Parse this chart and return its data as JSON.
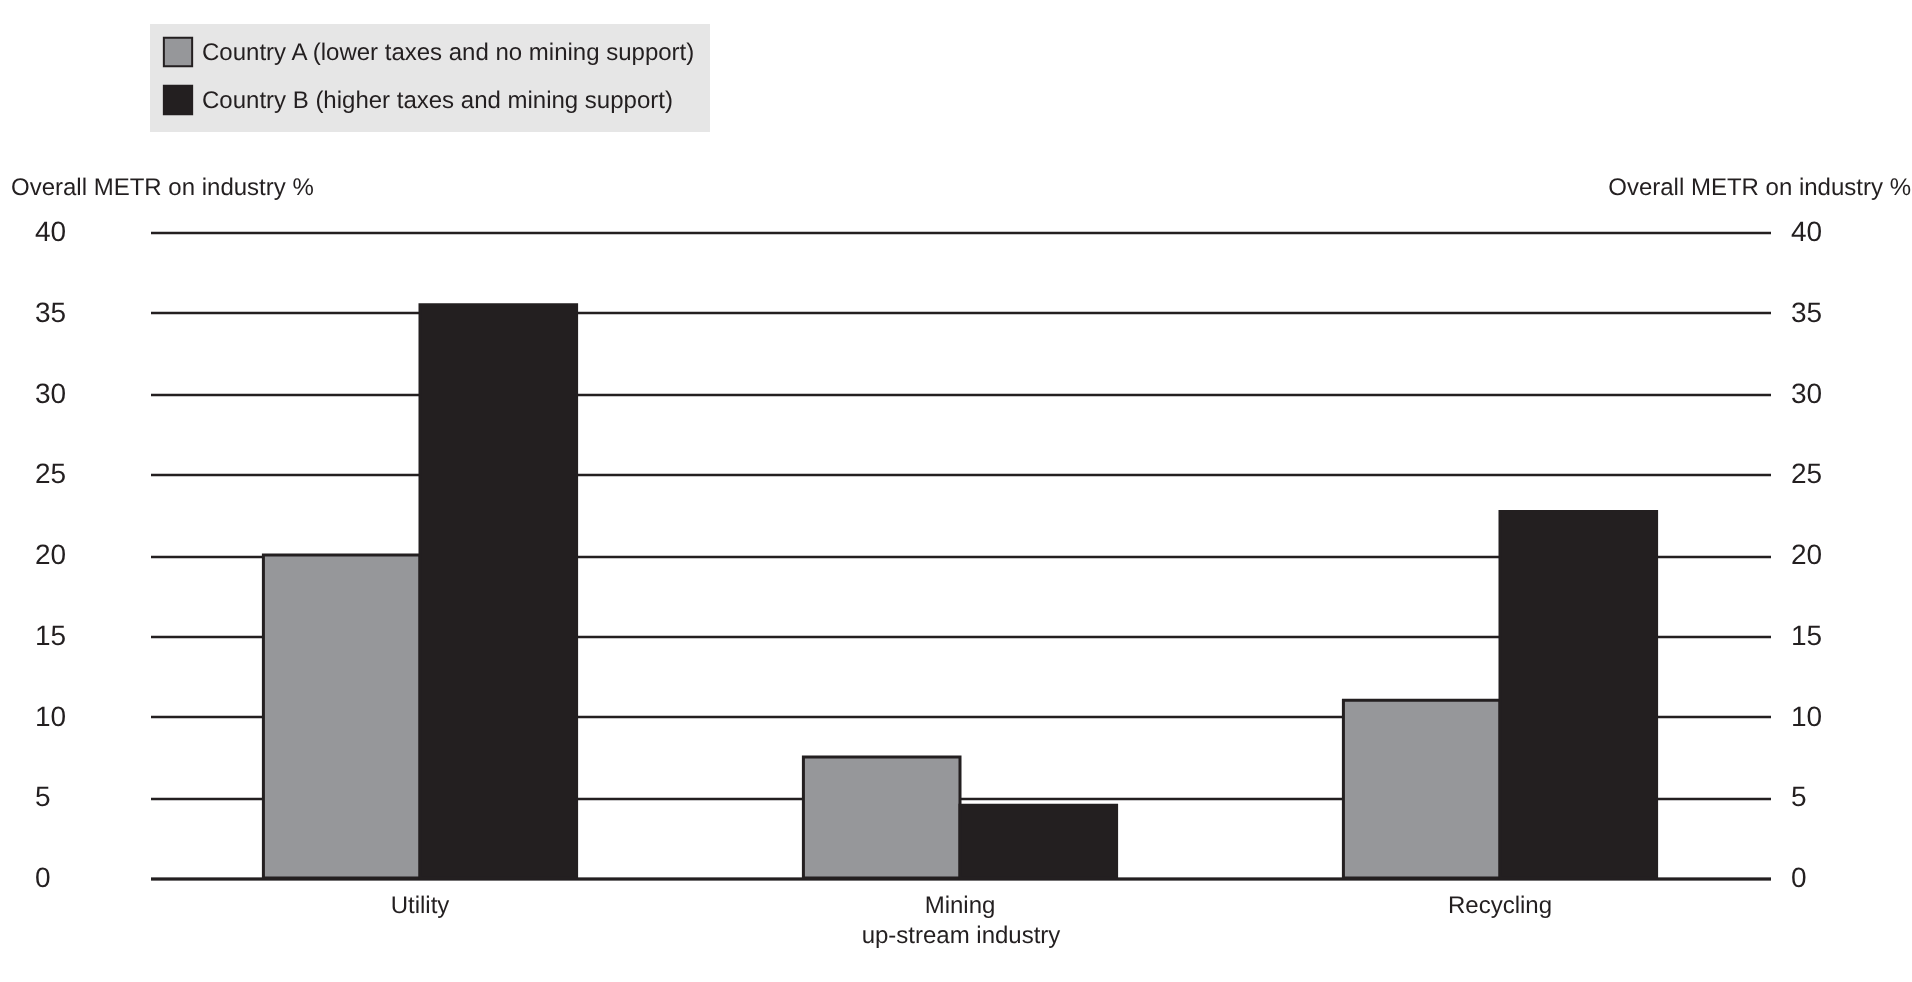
{
  "chart_data": {
    "type": "bar",
    "categories": [
      "Utility",
      "Mining",
      "Recycling"
    ],
    "xlabel": "up-stream industry",
    "ylabel": "Overall METR on industry %",
    "y2label": "Overall METR on industry %",
    "series": [
      {
        "name": "Country A (lower taxes and no mining support)",
        "color": "#96979a",
        "values": [
          20,
          7.5,
          11
        ]
      },
      {
        "name": "Country B (higher taxes and mining support)",
        "color": "#231f20",
        "values": [
          35.5,
          4.5,
          22.7
        ]
      }
    ],
    "ylim": [
      0,
      40
    ],
    "yticks": [
      0,
      5,
      10,
      15,
      20,
      25,
      30,
      35,
      40
    ],
    "y2lim": [
      0,
      40
    ],
    "y2ticks": [
      0,
      5,
      10,
      15,
      20,
      25,
      30,
      35,
      40
    ],
    "grid": "y",
    "legend": "top"
  }
}
